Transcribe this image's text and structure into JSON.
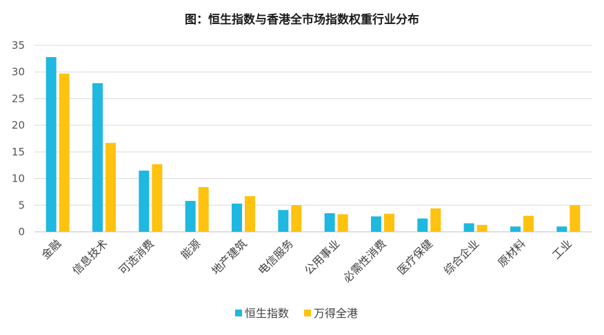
{
  "chart_data": {
    "type": "bar",
    "title": "图：恒生指数与香港全市场指数权重行业分布",
    "xlabel": "",
    "ylabel": "",
    "ylim": [
      0,
      35
    ],
    "yticks": [
      0,
      5,
      10,
      15,
      20,
      25,
      30,
      35
    ],
    "grid": true,
    "legend_position": "bottom",
    "categories": [
      "金融",
      "信息技术",
      "可选消费",
      "能源",
      "地产建筑",
      "电信服务",
      "公用事业",
      "必需性消费",
      "医疗保健",
      "综合企业",
      "原材料",
      "工业"
    ],
    "series": [
      {
        "name": "恒生指数",
        "color": "#1fb8e0",
        "values": [
          32.8,
          27.9,
          11.5,
          5.8,
          5.3,
          4.1,
          3.5,
          2.9,
          2.5,
          1.6,
          1.0,
          1.0
        ]
      },
      {
        "name": "万得全港",
        "color": "#ffc20e",
        "values": [
          29.7,
          16.7,
          12.7,
          8.4,
          6.7,
          5.0,
          3.3,
          3.4,
          4.4,
          1.3,
          3.0,
          5.0
        ]
      }
    ]
  }
}
